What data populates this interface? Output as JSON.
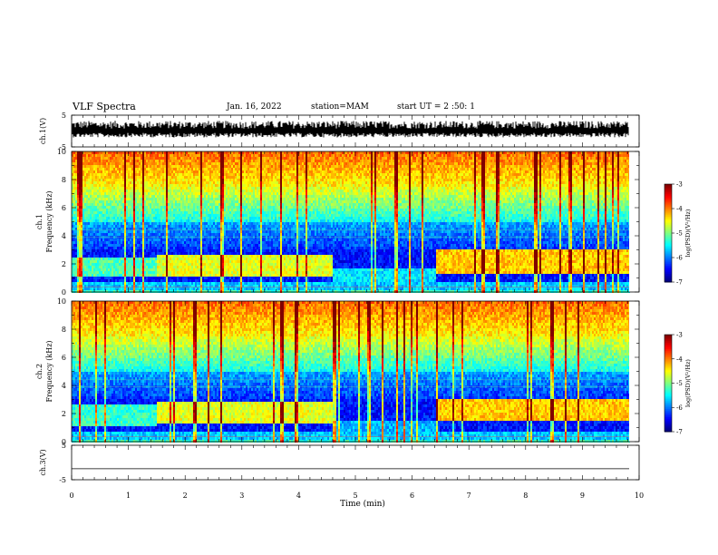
{
  "header": {
    "title": "VLF Spectra",
    "date": "Jan. 16, 2022",
    "station": "station=MAM",
    "start": "start UT = 2 :50: 1"
  },
  "chart_data": [
    {
      "type": "line",
      "panel": "ch1-waveform",
      "ylabel": "ch.1(V)",
      "ylim": [
        -5,
        5
      ],
      "yticks": [
        "5",
        "-5"
      ],
      "xlim": [
        0,
        10
      ],
      "description_series": "dense broadband voltage waveform, roughly -1.5 to 2 V"
    },
    {
      "type": "heatmap",
      "panel": "ch1-spectrogram",
      "ylabel_top": "ch.1",
      "ylabel": "Frequency (kHz)",
      "ylim": [
        0,
        10
      ],
      "yticks": [
        "0",
        "2",
        "4",
        "6",
        "8",
        "10"
      ],
      "xlim": [
        0,
        9.83
      ],
      "colorbar": {
        "label": "log(PSD)(V²/Hz)",
        "range": [
          -7,
          -3
        ],
        "ticks": [
          "-3",
          "-4",
          "-5",
          "-6",
          "-7"
        ]
      },
      "band_segments": [
        {
          "t_start": 0.0,
          "t_end": 1.5,
          "f_low": 1.2,
          "f_high": 2.6,
          "level": -5.2
        },
        {
          "t_start": 1.5,
          "t_end": 4.6,
          "f_low": 1.2,
          "f_high": 2.8,
          "level": -4.6
        },
        {
          "t_start": 4.6,
          "t_end": 6.4,
          "f_low": 0.9,
          "f_high": 1.7,
          "level": -5.6
        },
        {
          "t_start": 6.4,
          "t_end": 9.83,
          "f_low": 1.4,
          "f_high": 3.2,
          "level": -4.3
        }
      ]
    },
    {
      "type": "heatmap",
      "panel": "ch2-spectrogram",
      "ylabel_top": "ch.2",
      "ylabel": "Frequency (kHz)",
      "ylim": [
        0,
        10
      ],
      "yticks": [
        "0",
        "2",
        "4",
        "6",
        "8",
        "10"
      ],
      "xlim": [
        0,
        9.83
      ],
      "colorbar": {
        "label": "log(PSD)(V²/Hz)",
        "range": [
          -7,
          -3
        ],
        "ticks": [
          "-3",
          "-4",
          "-5",
          "-6",
          "-7"
        ]
      },
      "band_segments": [
        {
          "t_start": 0.0,
          "t_end": 1.5,
          "f_low": 1.1,
          "f_high": 2.7,
          "level": -5.3
        },
        {
          "t_start": 1.5,
          "t_end": 4.6,
          "f_low": 1.4,
          "f_high": 3.0,
          "level": -4.6
        },
        {
          "t_start": 4.6,
          "t_end": 6.4,
          "f_low": 0.8,
          "f_high": 1.6,
          "level": -5.8
        },
        {
          "t_start": 6.4,
          "t_end": 9.83,
          "f_low": 1.5,
          "f_high": 3.2,
          "level": -4.3
        }
      ]
    },
    {
      "type": "line",
      "panel": "ch3-waveform",
      "ylabel": "ch.3(V)",
      "ylim": [
        -5,
        5
      ],
      "yticks": [
        "5",
        "-5"
      ],
      "xlabel": "Time (min)",
      "xlim": [
        0,
        10
      ],
      "xticks": [
        "0",
        "1",
        "2",
        "3",
        "4",
        "5",
        "6",
        "7",
        "8",
        "9",
        "10"
      ],
      "values_flat": -1.8
    }
  ]
}
